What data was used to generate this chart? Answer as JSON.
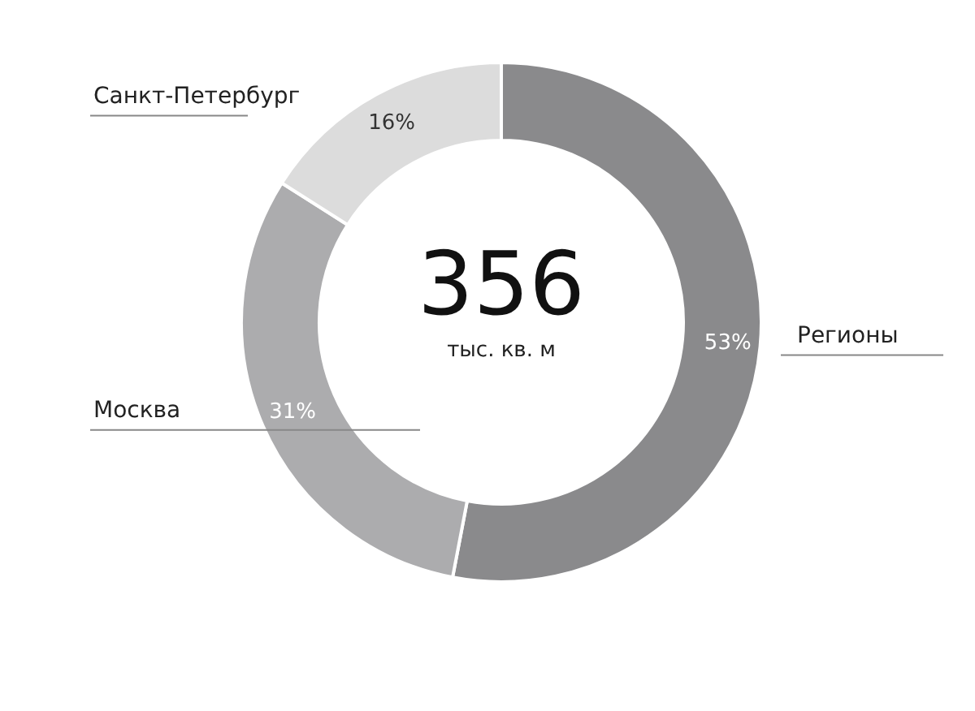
{
  "chart_data": {
    "type": "donut",
    "categories": [
      "Регионы",
      "Москва",
      "Санкт-Петербург"
    ],
    "values": [
      53,
      31,
      16
    ],
    "colors": [
      "#8a8a8c",
      "#acacae",
      "#dcdcdc"
    ],
    "value_labels": [
      "53%",
      "31%",
      "16%"
    ],
    "annotations": [
      "356",
      "тыс. кв. м"
    ]
  }
}
